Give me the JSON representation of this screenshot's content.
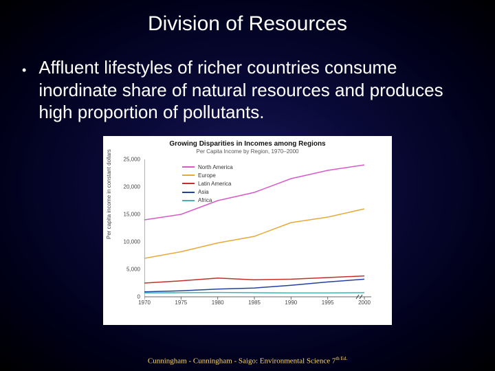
{
  "slide": {
    "title": "Division of Resources",
    "bullet": "Affluent lifestyles of richer countries consume inordinate share of natural resources and produces high proportion of pollutants.",
    "footer_prefix": "Cunningham - Cunningham - Saigo: Environmental Science 7",
    "footer_sup": "th Ed."
  },
  "chart": {
    "type": "line",
    "title": "Growing Disparities in Incomes among Regions",
    "subtitle": "Per Capita Income by Region, 1970–2000",
    "y_axis_label": "Per capita income in constant dollars",
    "background_color": "#ffffff",
    "axis_color": "#666666",
    "xlim": [
      1970,
      2000
    ],
    "ylim": [
      0,
      25000
    ],
    "ytick_step": 5000,
    "x_ticks": [
      1970,
      1975,
      1980,
      1985,
      1990,
      1995,
      2000
    ],
    "y_ticks": [
      0,
      5000,
      10000,
      15000,
      20000,
      25000
    ],
    "y_tick_labels": [
      "0",
      "5,000",
      "10,000",
      "15,000",
      "20,000",
      "25,000"
    ],
    "line_width": 1.5,
    "series": [
      {
        "name": "North America",
        "color": "#d858c8",
        "x": [
          1970,
          1975,
          1980,
          1985,
          1990,
          1995,
          2000
        ],
        "y": [
          14000,
          15000,
          17500,
          19000,
          21500,
          23000,
          24000
        ]
      },
      {
        "name": "Europe",
        "color": "#e8a838",
        "x": [
          1970,
          1975,
          1980,
          1985,
          1990,
          1995,
          2000
        ],
        "y": [
          7000,
          8200,
          9800,
          11000,
          13500,
          14500,
          16000
        ]
      },
      {
        "name": "Latin America",
        "color": "#c03028",
        "x": [
          1970,
          1975,
          1980,
          1985,
          1990,
          1995,
          2000
        ],
        "y": [
          2500,
          2900,
          3400,
          3100,
          3200,
          3500,
          3800
        ]
      },
      {
        "name": "Asia",
        "color": "#2040a0",
        "x": [
          1970,
          1975,
          1980,
          1985,
          1990,
          1995,
          2000
        ],
        "y": [
          900,
          1100,
          1400,
          1600,
          2100,
          2700,
          3200
        ]
      },
      {
        "name": "Africa",
        "color": "#48b0b0",
        "x": [
          1970,
          1975,
          1980,
          1985,
          1990,
          1995,
          2000
        ],
        "y": [
          700,
          750,
          800,
          750,
          700,
          700,
          750
        ]
      }
    ],
    "break_marker": true
  }
}
